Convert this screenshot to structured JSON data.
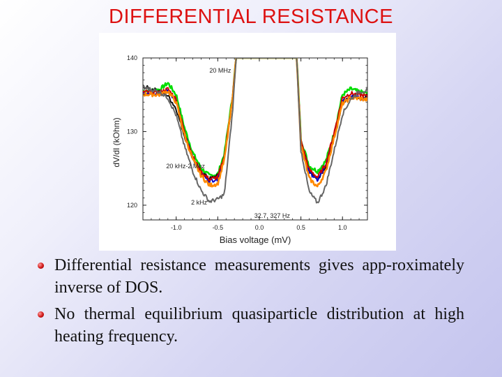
{
  "slide": {
    "title": "DIFFERENTIAL RESISTANCE",
    "bullets": [
      "Differential resistance measurements gives app-roximately inverse of DOS.",
      "No thermal equilibrium quasiparticle distribution at high heating frequency."
    ],
    "colors": {
      "title": "#dd1111",
      "bullet": "#cc1111"
    }
  },
  "chart_data": {
    "type": "line",
    "title": "",
    "xlabel": "Bias voltage (mV)",
    "ylabel": "dV/dI (kOhm)",
    "xlim": [
      -1.4,
      1.3
    ],
    "ylim": [
      118,
      140
    ],
    "xticks": [
      -1.0,
      -0.5,
      0.0,
      0.5,
      1.0
    ],
    "xtick_labels": [
      "-1.0",
      "-0.5",
      "0.0",
      "0.5",
      "1.0"
    ],
    "yticks": [
      120,
      130,
      140
    ],
    "ytick_labels": [
      "120",
      "130",
      "140"
    ],
    "grid": false,
    "annotations": [
      {
        "text": "20 MHz",
        "x": -0.6,
        "y": 138
      },
      {
        "text": "20 kHz-2 Mhz",
        "x": -1.12,
        "y": 125
      },
      {
        "text": "2 kHz",
        "x": -0.82,
        "y": 120.1
      },
      {
        "text": "32.7, 327 Hz",
        "x": -0.06,
        "y": 118.3
      }
    ],
    "series": [
      {
        "color": "#00dd00",
        "x": [
          -1.4,
          -1.2,
          -1.1,
          -1.0,
          -0.9,
          -0.8,
          -0.7,
          -0.6,
          -0.5,
          -0.42,
          -0.32,
          -0.28,
          -0.22,
          -0.18,
          0.4,
          0.45,
          0.5,
          0.6,
          0.7,
          0.8,
          0.9,
          1.0,
          1.1,
          1.2,
          1.3
        ],
        "y": [
          135.5,
          135.7,
          136.6,
          135.0,
          130.5,
          127.1,
          125.0,
          124.0,
          124.2,
          127.0,
          135.0,
          140,
          140,
          140,
          140,
          140,
          129.0,
          125.3,
          124.6,
          126.0,
          129.8,
          135.0,
          135.8,
          135.4,
          135.2
        ]
      },
      {
        "color": "#111111",
        "x": [
          -1.4,
          -1.2,
          -1.1,
          -1.0,
          -0.9,
          -0.8,
          -0.7,
          -0.6,
          -0.5,
          -0.42,
          -0.32,
          -0.28,
          -0.22,
          -0.18,
          0.4,
          0.45,
          0.5,
          0.6,
          0.7,
          0.8,
          0.9,
          1.0,
          1.1,
          1.2,
          1.3
        ],
        "y": [
          136.1,
          135.5,
          134.9,
          133.1,
          129.4,
          126.3,
          124.5,
          123.6,
          124.0,
          126.6,
          134.6,
          140,
          140,
          140,
          140,
          140,
          128.6,
          124.7,
          123.6,
          125.3,
          129.4,
          133.9,
          134.9,
          134.7,
          134.6
        ]
      },
      {
        "color": "#0000cc",
        "x": [
          -1.4,
          -1.2,
          -1.1,
          -1.0,
          -0.9,
          -0.8,
          -0.7,
          -0.6,
          -0.5,
          -0.42,
          -0.32,
          -0.28,
          -0.22,
          -0.18,
          0.4,
          0.45,
          0.5,
          0.6,
          0.7,
          0.8,
          0.9,
          1.0,
          1.1,
          1.2,
          1.3
        ],
        "y": [
          135.2,
          135.1,
          135.6,
          134.2,
          129.8,
          126.5,
          124.3,
          123.3,
          123.6,
          126.5,
          134.8,
          140,
          140,
          140,
          140,
          140,
          128.6,
          124.5,
          123.4,
          125.3,
          129.6,
          134.3,
          134.8,
          134.6,
          134.4
        ]
      },
      {
        "color": "#cc0000",
        "x": [
          -1.4,
          -1.2,
          -1.1,
          -1.0,
          -0.9,
          -0.8,
          -0.7,
          -0.6,
          -0.5,
          -0.42,
          -0.32,
          -0.28,
          -0.22,
          -0.18,
          0.4,
          0.45,
          0.5,
          0.6,
          0.7,
          0.8,
          0.9,
          1.0,
          1.1,
          1.2,
          1.3
        ],
        "y": [
          135.4,
          135.3,
          135.8,
          134.4,
          129.9,
          126.6,
          124.5,
          123.5,
          123.8,
          126.6,
          134.9,
          140,
          140,
          140,
          140,
          140,
          128.8,
          124.8,
          123.8,
          125.6,
          129.9,
          134.6,
          135.2,
          135.0,
          134.8
        ]
      },
      {
        "color": "#ff8800",
        "x": [
          -1.4,
          -1.2,
          -1.1,
          -1.0,
          -0.9,
          -0.8,
          -0.7,
          -0.6,
          -0.5,
          -0.42,
          -0.32,
          -0.28,
          -0.22,
          -0.18,
          0.4,
          0.45,
          0.5,
          0.6,
          0.7,
          0.8,
          0.9,
          1.0,
          1.1,
          1.2,
          1.3
        ],
        "y": [
          135.1,
          135.0,
          135.5,
          134.0,
          129.5,
          126.2,
          124.0,
          122.7,
          122.9,
          126.2,
          134.6,
          140,
          140,
          140,
          140,
          140,
          128.2,
          123.6,
          122.5,
          124.6,
          129.2,
          133.8,
          134.6,
          134.5,
          134.3
        ]
      },
      {
        "color": "#666666",
        "x": [
          -1.4,
          -1.2,
          -1.1,
          -1.0,
          -0.9,
          -0.8,
          -0.7,
          -0.6,
          -0.5,
          -0.42,
          -0.32,
          -0.28,
          -0.22,
          -0.18,
          0.4,
          0.45,
          0.5,
          0.6,
          0.7,
          0.8,
          0.9,
          1.0,
          1.1,
          1.2,
          1.3
        ],
        "y": [
          136.0,
          135.4,
          134.6,
          132.2,
          128.0,
          124.6,
          122.0,
          120.5,
          120.8,
          121.5,
          133.0,
          140,
          140,
          140,
          140,
          140,
          127.5,
          121.8,
          120.3,
          122.6,
          127.4,
          132.4,
          134.4,
          135.4,
          135.6
        ]
      }
    ]
  }
}
